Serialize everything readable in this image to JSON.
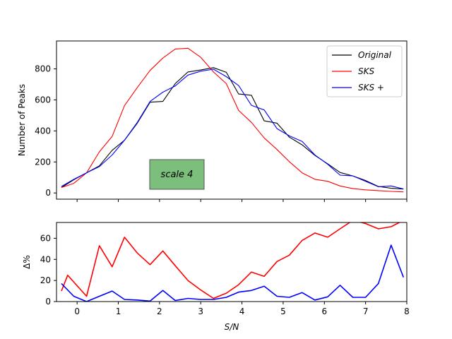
{
  "chart_data": [
    {
      "type": "line",
      "ylabel": "Number of Peaks",
      "xlim": [
        -0.5,
        8
      ],
      "ylim": [
        -40,
        980
      ],
      "yticks": [
        0,
        200,
        400,
        600,
        800
      ],
      "legend_position": "top-right",
      "annotation": {
        "text": "scale 4",
        "color": "#7cbf7c"
      },
      "series": [
        {
          "name": "Original",
          "color": "#000000",
          "x": [
            -0.38,
            -0.08,
            0.23,
            0.54,
            0.85,
            1.15,
            1.46,
            1.77,
            2.08,
            2.38,
            2.69,
            3.0,
            3.31,
            3.62,
            3.92,
            4.23,
            4.54,
            4.85,
            5.15,
            5.46,
            5.77,
            6.08,
            6.38,
            6.69,
            7.0,
            7.31,
            7.62,
            7.92
          ],
          "y": [
            35,
            85,
            130,
            175,
            275,
            340,
            450,
            585,
            590,
            705,
            780,
            793,
            808,
            778,
            638,
            630,
            465,
            450,
            360,
            310,
            242,
            188,
            132,
            110,
            80,
            42,
            30,
            25
          ]
        },
        {
          "name": "SKS",
          "color": "#ff0000",
          "x": [
            -0.38,
            -0.08,
            0.23,
            0.54,
            0.85,
            1.15,
            1.46,
            1.77,
            2.08,
            2.38,
            2.69,
            3.0,
            3.31,
            3.62,
            3.92,
            4.23,
            4.54,
            4.85,
            5.15,
            5.46,
            5.77,
            6.08,
            6.38,
            6.69,
            7.0,
            7.31,
            7.62,
            7.92
          ],
          "y": [
            35,
            62,
            130,
            265,
            365,
            563,
            680,
            790,
            870,
            928,
            933,
            875,
            780,
            705,
            532,
            455,
            355,
            280,
            202,
            130,
            88,
            75,
            45,
            28,
            20,
            15,
            10,
            7
          ]
        },
        {
          "name": "SKS +",
          "color": "#0000ff",
          "x": [
            -0.38,
            -0.08,
            0.23,
            0.54,
            0.85,
            1.15,
            1.46,
            1.77,
            2.08,
            2.38,
            2.69,
            3.0,
            3.31,
            3.62,
            3.92,
            4.23,
            4.54,
            4.85,
            5.15,
            5.46,
            5.77,
            6.08,
            6.38,
            6.69,
            7.0,
            7.31,
            7.62,
            7.92
          ],
          "y": [
            42,
            88,
            130,
            170,
            245,
            340,
            455,
            590,
            650,
            690,
            760,
            785,
            798,
            750,
            692,
            565,
            535,
            415,
            368,
            332,
            245,
            185,
            115,
            110,
            75,
            40,
            45,
            26
          ]
        }
      ]
    },
    {
      "type": "line",
      "xlabel": "S/N",
      "ylabel": "Δ%",
      "xlim": [
        -0.5,
        8
      ],
      "ylim": [
        0,
        75
      ],
      "xticks": [
        0,
        1,
        2,
        3,
        4,
        5,
        6,
        7,
        8
      ],
      "yticks": [
        0,
        20,
        40,
        60
      ],
      "series": [
        {
          "name": "SKS",
          "color": "#ff0000",
          "x": [
            -0.38,
            -0.23,
            0.23,
            0.54,
            0.85,
            1.15,
            1.46,
            1.77,
            2.08,
            2.38,
            2.69,
            3.0,
            3.31,
            3.62,
            3.92,
            4.23,
            4.54,
            4.85,
            5.15,
            5.46,
            5.77,
            6.08,
            6.38,
            6.69,
            7.0,
            7.31,
            7.62,
            7.92
          ],
          "y": [
            10,
            25,
            5,
            53,
            33,
            61,
            46,
            35,
            48,
            34,
            20,
            11,
            3,
            8,
            16,
            28,
            24,
            38,
            44,
            58,
            65,
            61,
            69,
            77,
            74,
            69,
            71,
            77
          ]
        },
        {
          "name": "SKS +",
          "color": "#0000ff",
          "x": [
            -0.38,
            -0.08,
            0.23,
            0.54,
            0.85,
            1.15,
            1.46,
            1.77,
            2.08,
            2.38,
            2.69,
            3.0,
            3.31,
            3.62,
            3.92,
            4.23,
            4.54,
            4.85,
            5.15,
            5.46,
            5.77,
            6.08,
            6.38,
            6.69,
            7.0,
            7.31,
            7.62,
            7.92
          ],
          "y": [
            17,
            5,
            0,
            5,
            10,
            2,
            1.5,
            0.5,
            10.5,
            1,
            3,
            2,
            2,
            4,
            9,
            10.5,
            14.5,
            5,
            4,
            8.5,
            1.5,
            4.5,
            15.5,
            4,
            4,
            17,
            53.5,
            23
          ]
        }
      ]
    }
  ]
}
